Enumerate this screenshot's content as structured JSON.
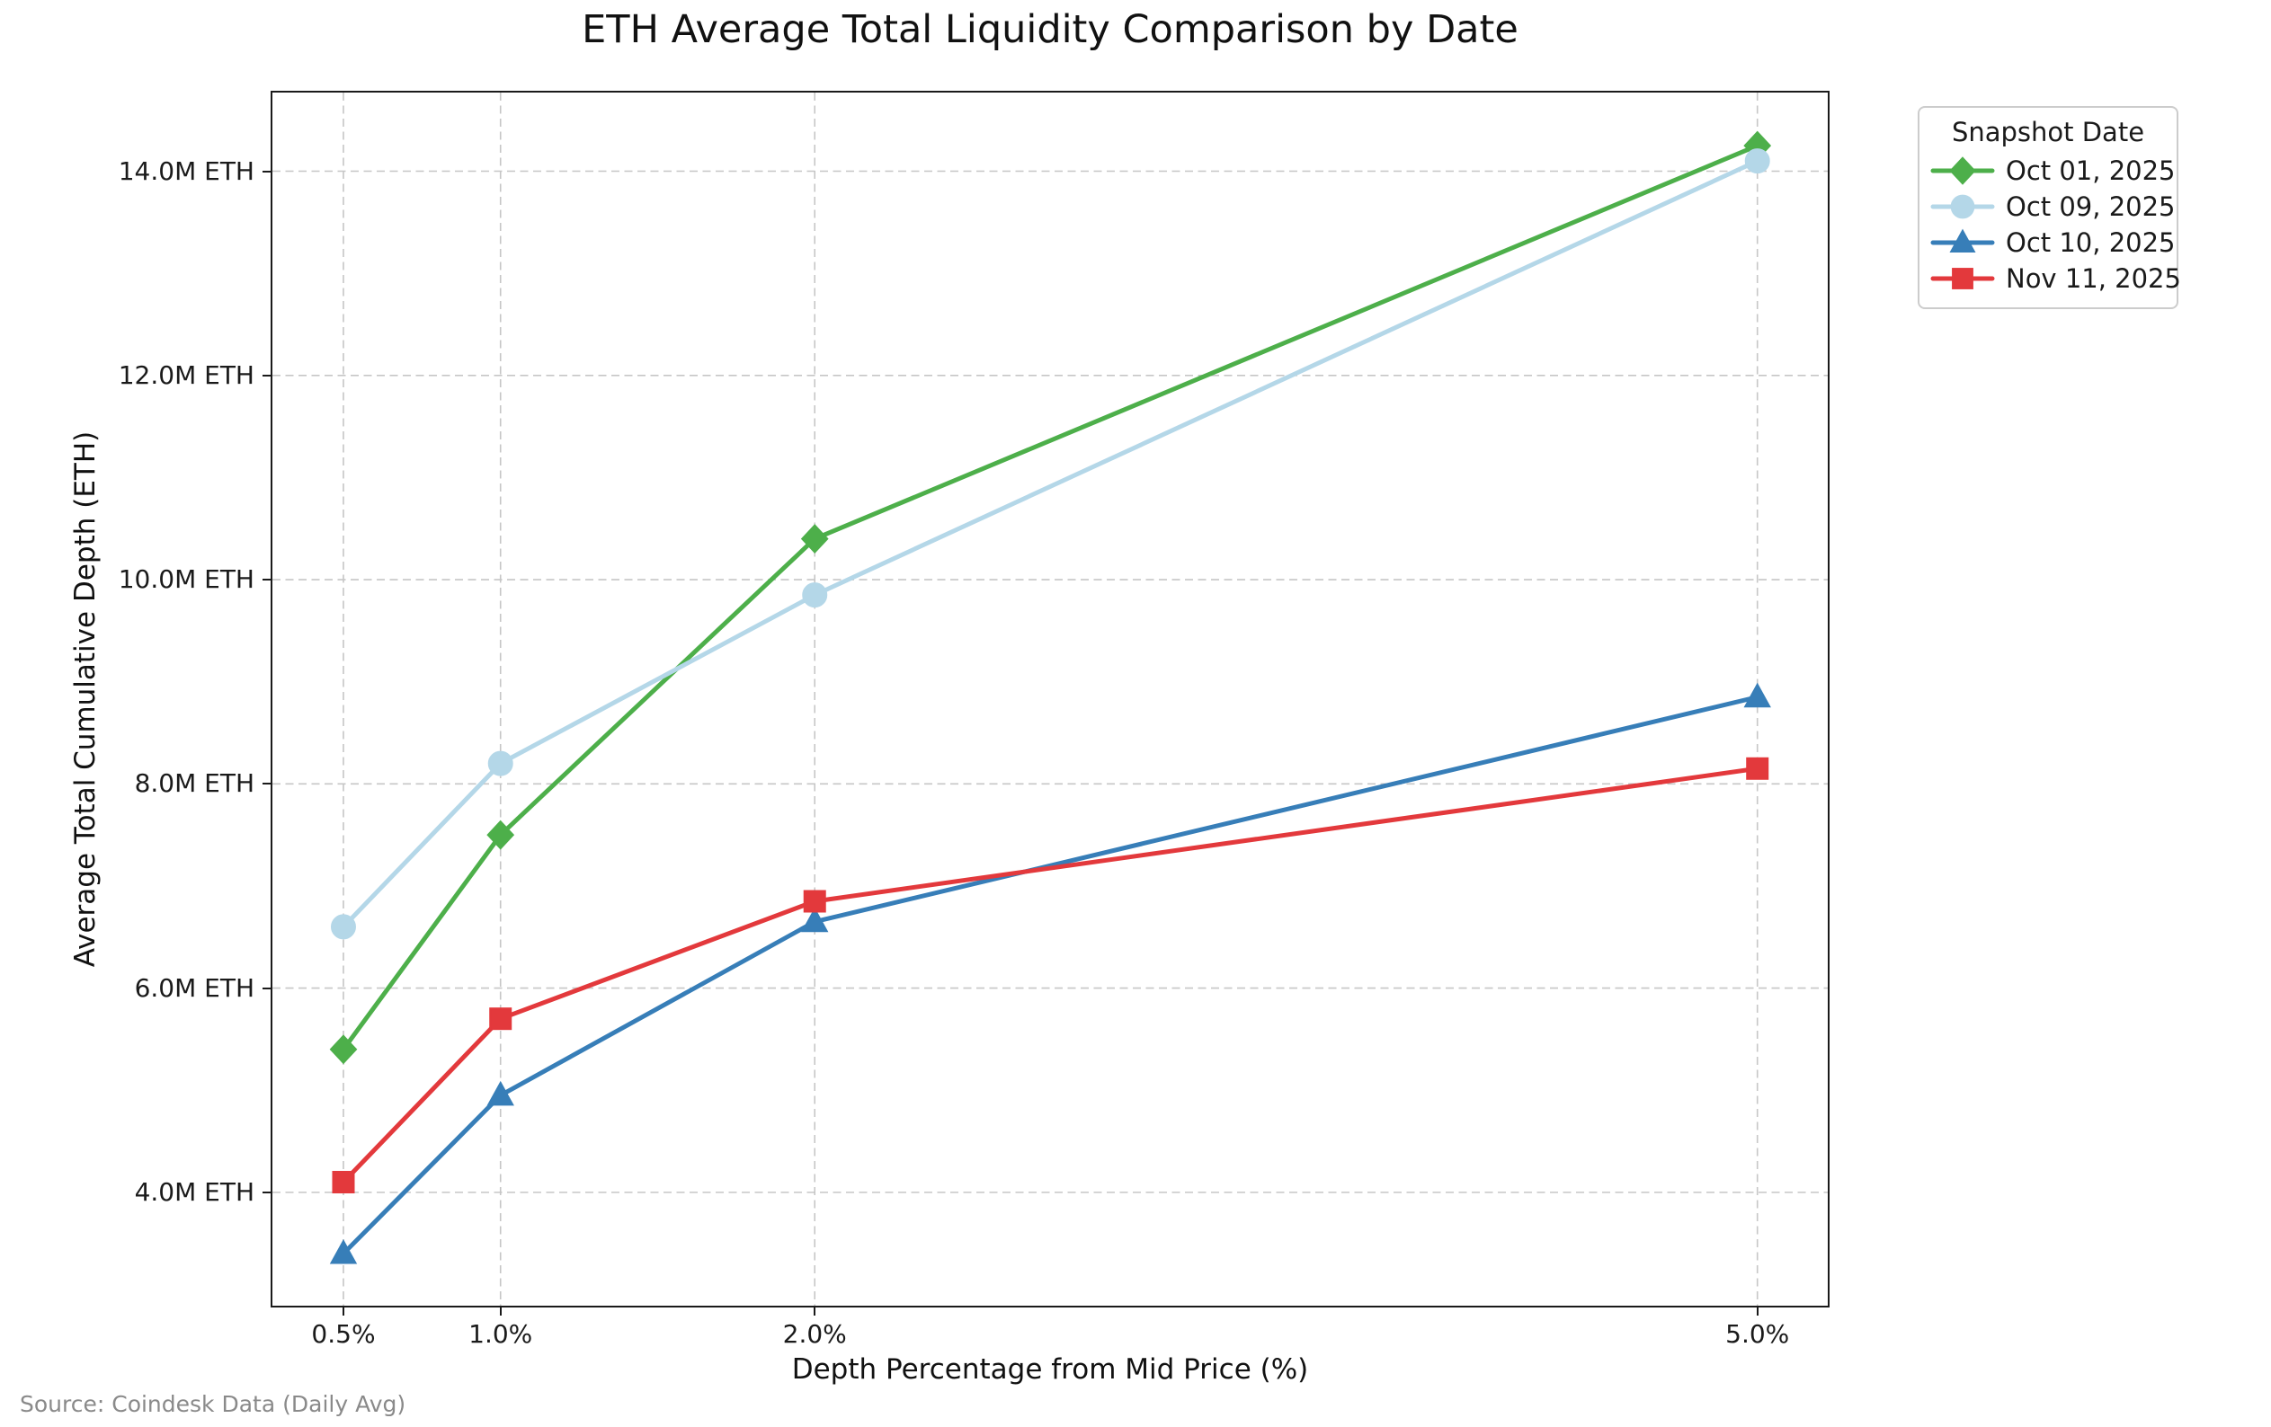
{
  "title": "ETH Average Total Liquidity Comparison by Date",
  "source_note": "Source: Coindesk Data (Daily Avg)",
  "legend": {
    "title": "Snapshot Date",
    "position": "upper right outside"
  },
  "axes": {
    "xlabel": "Depth Percentage from Mid Price (%)",
    "ylabel": "Average Total Cumulative Depth (ETH)",
    "xlim": [
      0.274,
      5.224
    ],
    "ylim": [
      2.89,
      14.77
    ],
    "grid": true,
    "grid_style": "dashed",
    "xticks": [
      {
        "value": 0.5,
        "label": "0.5%"
      },
      {
        "value": 1.0,
        "label": "1.0%"
      },
      {
        "value": 2.0,
        "label": "2.0%"
      },
      {
        "value": 5.0,
        "label": "5.0%"
      }
    ],
    "yticks": [
      {
        "value": 4.0,
        "label": "4.0M ETH"
      },
      {
        "value": 6.0,
        "label": "6.0M ETH"
      },
      {
        "value": 8.0,
        "label": "8.0M ETH"
      },
      {
        "value": 10.0,
        "label": "10.0M ETH"
      },
      {
        "value": 12.0,
        "label": "12.0M ETH"
      },
      {
        "value": 14.0,
        "label": "14.0M ETH"
      }
    ]
  },
  "chart_data": {
    "type": "line",
    "title": "ETH Average Total Liquidity Comparison by Date",
    "xlabel": "Depth Percentage from Mid Price (%)",
    "ylabel": "Average Total Cumulative Depth (ETH)",
    "x": [
      0.5,
      1.0,
      2.0,
      5.0
    ],
    "x_unit": "percent depth from mid price",
    "y_unit": "million ETH",
    "xlim": [
      0.274,
      5.224
    ],
    "ylim": [
      2.89,
      14.77
    ],
    "grid": true,
    "legend_position": "upper right outside",
    "series": [
      {
        "name": "Oct 01, 2025",
        "color": "#4daf4a",
        "marker": "diamond",
        "values": [
          5.4,
          7.5,
          10.4,
          14.25
        ]
      },
      {
        "name": "Oct 09, 2025",
        "color": "#b4d7e8",
        "marker": "circle",
        "values": [
          6.6,
          8.2,
          9.85,
          14.1
        ]
      },
      {
        "name": "Oct 10, 2025",
        "color": "#377eb8",
        "marker": "triangle-up",
        "values": [
          3.4,
          4.95,
          6.65,
          8.85
        ]
      },
      {
        "name": "Nov 11, 2025",
        "color": "#e3393c",
        "marker": "square",
        "values": [
          4.1,
          5.7,
          6.85,
          8.15
        ]
      }
    ]
  }
}
